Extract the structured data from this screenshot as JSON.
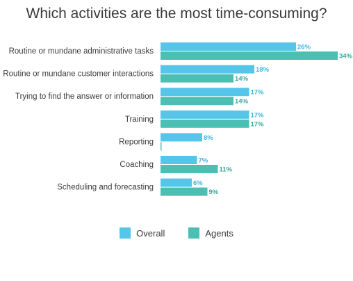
{
  "chart_data": {
    "type": "bar",
    "orientation": "horizontal",
    "title": "Which activities are the most time-consuming?",
    "categories": [
      "Routine or mundane administrative tasks",
      "Routine or mundane customer interactions",
      "Trying to find the answer or information",
      "Training",
      "Reporting",
      "Coaching",
      "Scheduling and forecasting"
    ],
    "series": [
      {
        "name": "Overall",
        "color": "#55c6ea",
        "label_color": "#3fb6e0",
        "values": [
          26,
          18,
          17,
          17,
          8,
          7,
          6
        ],
        "labels": [
          "26%",
          "18%",
          "17%",
          "17%",
          "8%",
          "7%",
          "6%"
        ]
      },
      {
        "name": "Agents",
        "color": "#4cbfb3",
        "label_color": "#3aa99d",
        "values": [
          34,
          14,
          14,
          17,
          0,
          11,
          9
        ],
        "labels": [
          "34%",
          "14%",
          "14%",
          "17%",
          "",
          "11%",
          "9%"
        ]
      }
    ],
    "xlim": [
      0,
      34
    ],
    "grid": false,
    "legend_position": "bottom"
  }
}
